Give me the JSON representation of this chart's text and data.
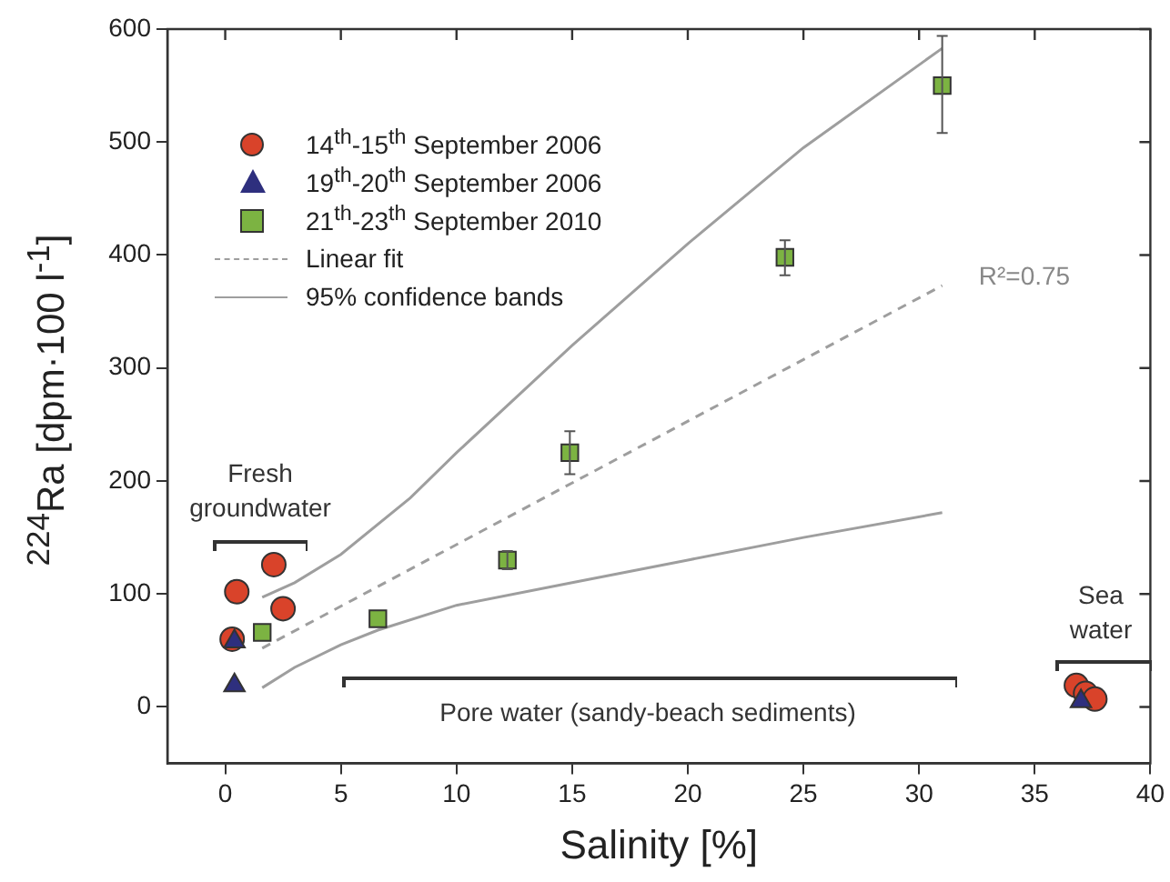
{
  "chart_data": {
    "type": "scatter",
    "xlabel": "Salinity [%]",
    "ylabel": "$^{224}$Ra [dpm·100 l$^{-1}$]",
    "xlim": [
      -2.5,
      40
    ],
    "xticks": [
      0,
      5,
      10,
      15,
      20,
      25,
      30,
      35,
      40
    ],
    "ylim": [
      -50,
      600
    ],
    "yticks": [
      0,
      100,
      200,
      300,
      400,
      500,
      600
    ],
    "grid": false,
    "legend": "top left",
    "series": [
      {
        "name": "14$^{th}$-15$^{th}$ September 2006",
        "color": "#d9432a",
        "marker": "circle",
        "x": [
          0.5,
          2.1,
          2.5,
          0.3,
          36.8,
          37.2,
          37.6
        ],
        "values": [
          102,
          126,
          87,
          60,
          19,
          12,
          7
        ]
      },
      {
        "name": "19$^{th}$-20$^{th}$ September 2006",
        "color": "#2e2f7e",
        "marker": "triangle",
        "x": [
          0.4,
          0.4,
          37
        ],
        "values": [
          58,
          19,
          5
        ]
      },
      {
        "name": "21$^{th}$-23$^{th}$ September 2010",
        "color": "#7cb342",
        "marker": "square",
        "x": [
          1.6,
          6.6,
          12.2,
          14.9,
          24.2,
          31
        ],
        "values": [
          66,
          78,
          130,
          225,
          398,
          550
        ],
        "errors": [
          null,
          null,
          [
            122,
            138
          ],
          [
            206,
            244
          ],
          [
            382,
            413
          ],
          [
            508,
            594
          ]
        ]
      },
      {
        "name": "Linear fit",
        "type": "line",
        "color": "#9e9e9e",
        "line_style": "dashed",
        "marker": "none",
        "x": [
          1.6,
          31
        ],
        "values": [
          52,
          373
        ]
      },
      {
        "name": "95% confidence bands",
        "type": "line",
        "color": "#9e9e9e",
        "line_style": "solid",
        "marker": "none",
        "x": [
          1.6,
          3,
          5,
          8,
          10,
          15,
          20,
          25,
          31
        ],
        "values": [
          97,
          110,
          135,
          185,
          225,
          320,
          410,
          495,
          583
        ]
      },
      {
        "type": "line",
        "color": "#9e9e9e",
        "line_style": "solid",
        "marker": "none",
        "x": [
          1.6,
          3,
          5,
          6.6,
          10,
          15,
          20,
          25,
          31
        ],
        "values": [
          17,
          35,
          55,
          68,
          90,
          110,
          130,
          150,
          172
        ]
      }
    ],
    "annotations": [
      "R²=0.75",
      "Fresh groundwater",
      "Pore water (sandy-beach sediments)",
      "Sea water"
    ]
  }
}
